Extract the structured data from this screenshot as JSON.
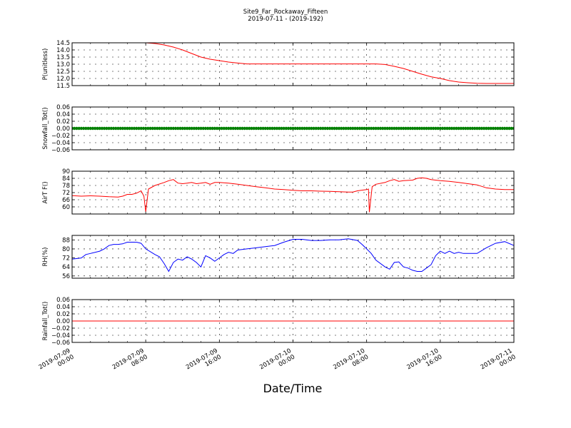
{
  "chart_data": {
    "type": "line",
    "title": "Site9_Far_Rockaway_Fifteen",
    "subtitle": "2019-07-11 - (2019-192)",
    "xlabel": "Date/Time",
    "x_range": [
      "2019-07-09 00:00",
      "2019-07-11 00:00"
    ],
    "x_ticks": [
      {
        "hours": 0,
        "label_date": "2019-07-09",
        "label_time": "00:00"
      },
      {
        "hours": 8,
        "label_date": "2019-07-09",
        "label_time": "08:00"
      },
      {
        "hours": 16,
        "label_date": "2019-07-09",
        "label_time": "16:00"
      },
      {
        "hours": 24,
        "label_date": "2019-07-10",
        "label_time": "00:00"
      },
      {
        "hours": 32,
        "label_date": "2019-07-10",
        "label_time": "08:00"
      },
      {
        "hours": 40,
        "label_date": "2019-07-10",
        "label_time": "16:00"
      },
      {
        "hours": 48,
        "label_date": "2019-07-11",
        "label_time": "00:00"
      }
    ],
    "panels": [
      {
        "ylabel": "P(unitless)",
        "ylim": [
          11.5,
          14.5
        ],
        "yticks": [
          "11.5",
          "12.0",
          "12.5",
          "13.0",
          "13.5",
          "14.0",
          "14.5"
        ],
        "color": "#ff0000",
        "style": "line",
        "series": [
          [
            0,
            14.5
          ],
          [
            8,
            14.5
          ],
          [
            9,
            14.45
          ],
          [
            10,
            14.35
          ],
          [
            11,
            14.2
          ],
          [
            12,
            14.0
          ],
          [
            13,
            13.75
          ],
          [
            14,
            13.5
          ],
          [
            15,
            13.35
          ],
          [
            16,
            13.25
          ],
          [
            17,
            13.15
          ],
          [
            18,
            13.08
          ],
          [
            19,
            13.02
          ],
          [
            20,
            13.02
          ],
          [
            22,
            13.02
          ],
          [
            24,
            13.02
          ],
          [
            28,
            13.02
          ],
          [
            32,
            13.02
          ],
          [
            33,
            13.02
          ],
          [
            34,
            12.98
          ],
          [
            35,
            12.85
          ],
          [
            36,
            12.7
          ],
          [
            37,
            12.5
          ],
          [
            38,
            12.3
          ],
          [
            39,
            12.12
          ],
          [
            40,
            12.0
          ],
          [
            41,
            11.85
          ],
          [
            42,
            11.75
          ],
          [
            43,
            11.7
          ],
          [
            44,
            11.66
          ],
          [
            45,
            11.65
          ],
          [
            48,
            11.65
          ]
        ]
      },
      {
        "ylabel": "Snowfall_Tot()",
        "ylim": [
          -0.06,
          0.06
        ],
        "yticks": [
          "−0.06",
          "−0.04",
          "−0.02",
          "0.00",
          "0.02",
          "0.04",
          "0.06"
        ],
        "color": "#008000",
        "style": "markers",
        "series": [
          [
            0,
            0
          ],
          [
            48,
            0
          ]
        ]
      },
      {
        "ylabel": "AirT F()",
        "ylim": [
          54,
          90
        ],
        "yticks": [
          "60",
          "66",
          "72",
          "78",
          "84",
          "90"
        ],
        "color": "#ff0000",
        "style": "line",
        "series": [
          [
            0,
            69.5
          ],
          [
            1,
            69
          ],
          [
            2,
            69.3
          ],
          [
            3,
            69
          ],
          [
            4,
            68.5
          ],
          [
            5,
            68.3
          ],
          [
            5.5,
            69
          ],
          [
            6,
            70.5
          ],
          [
            6.5,
            70.5
          ],
          [
            7,
            71.5
          ],
          [
            7.5,
            73.5
          ],
          [
            7.8,
            69
          ],
          [
            8,
            56
          ],
          [
            8.3,
            75
          ],
          [
            9,
            78
          ],
          [
            10,
            80.5
          ],
          [
            10.5,
            82
          ],
          [
            11,
            83
          ],
          [
            11.5,
            80
          ],
          [
            12,
            79.5
          ],
          [
            12.5,
            80
          ],
          [
            13,
            80.5
          ],
          [
            13.5,
            79.5
          ],
          [
            14,
            80
          ],
          [
            14.5,
            80.5
          ],
          [
            15,
            79
          ],
          [
            15.5,
            80.5
          ],
          [
            16,
            80.5
          ],
          [
            17,
            80
          ],
          [
            18,
            79
          ],
          [
            19,
            78
          ],
          [
            20,
            77
          ],
          [
            21,
            76
          ],
          [
            22,
            75
          ],
          [
            23,
            74.5
          ],
          [
            24,
            74
          ],
          [
            25,
            73.5
          ],
          [
            26,
            73.5
          ],
          [
            27,
            73.2
          ],
          [
            28,
            73
          ],
          [
            29,
            72.8
          ],
          [
            30,
            72.5
          ],
          [
            30.5,
            72.5
          ],
          [
            31,
            73.5
          ],
          [
            32,
            74.5
          ],
          [
            32.2,
            75
          ],
          [
            32.3,
            55.5
          ],
          [
            32.6,
            77
          ],
          [
            33,
            79
          ],
          [
            34,
            80.5
          ],
          [
            34.5,
            82
          ],
          [
            35,
            83
          ],
          [
            35.5,
            81.5
          ],
          [
            36,
            82
          ],
          [
            37,
            82.5
          ],
          [
            37.5,
            84
          ],
          [
            38,
            84.5
          ],
          [
            38.5,
            84
          ],
          [
            39,
            83
          ],
          [
            40,
            82
          ],
          [
            41,
            81.5
          ],
          [
            42,
            80.5
          ],
          [
            43,
            79.5
          ],
          [
            44,
            78.5
          ],
          [
            45,
            76
          ],
          [
            46,
            75
          ],
          [
            47,
            74.5
          ],
          [
            48,
            74.5
          ]
        ]
      },
      {
        "ylabel": "RH(%)",
        "ylim": [
          54,
          92
        ],
        "yticks": [
          "56",
          "64",
          "72",
          "80",
          "88"
        ],
        "color": "#0000ff",
        "style": "line",
        "series": [
          [
            0,
            71
          ],
          [
            1,
            72
          ],
          [
            1.5,
            75
          ],
          [
            2,
            76
          ],
          [
            3,
            78
          ],
          [
            3.5,
            80
          ],
          [
            4,
            83
          ],
          [
            4.5,
            84
          ],
          [
            5,
            84
          ],
          [
            5.5,
            84.5
          ],
          [
            6,
            86
          ],
          [
            7,
            86
          ],
          [
            7.5,
            85
          ],
          [
            8,
            80
          ],
          [
            9,
            75
          ],
          [
            9.5,
            73
          ],
          [
            10,
            67
          ],
          [
            10.5,
            60
          ],
          [
            11,
            68
          ],
          [
            11.5,
            71
          ],
          [
            12,
            70
          ],
          [
            12.5,
            73
          ],
          [
            13,
            71
          ],
          [
            13.5,
            68
          ],
          [
            14,
            64
          ],
          [
            14.5,
            74
          ],
          [
            15,
            72
          ],
          [
            15.5,
            69
          ],
          [
            16,
            72
          ],
          [
            16.5,
            75
          ],
          [
            17,
            77
          ],
          [
            17.5,
            76
          ],
          [
            18,
            79
          ],
          [
            19,
            80
          ],
          [
            20,
            81
          ],
          [
            21,
            82
          ],
          [
            22,
            83
          ],
          [
            23,
            86
          ],
          [
            24,
            88.5
          ],
          [
            25,
            88.5
          ],
          [
            26,
            87.5
          ],
          [
            27,
            87.5
          ],
          [
            28,
            88
          ],
          [
            29,
            88
          ],
          [
            30,
            89
          ],
          [
            31,
            87.5
          ],
          [
            31.5,
            84
          ],
          [
            32,
            80
          ],
          [
            32.5,
            76
          ],
          [
            33,
            70
          ],
          [
            34,
            64
          ],
          [
            34.5,
            62
          ],
          [
            35,
            68
          ],
          [
            35.5,
            68.5
          ],
          [
            36,
            64
          ],
          [
            36.5,
            63
          ],
          [
            37,
            61
          ],
          [
            37.5,
            60
          ],
          [
            38,
            60
          ],
          [
            38.5,
            63
          ],
          [
            39,
            66
          ],
          [
            39.5,
            74
          ],
          [
            40,
            78
          ],
          [
            40.5,
            76
          ],
          [
            41,
            78
          ],
          [
            41.5,
            76
          ],
          [
            42,
            77
          ],
          [
            42.5,
            76
          ],
          [
            43,
            76
          ],
          [
            44,
            76
          ],
          [
            45,
            81
          ],
          [
            46,
            85
          ],
          [
            47,
            86.5
          ],
          [
            48,
            83
          ]
        ]
      },
      {
        "ylabel": "Rainfall_Tot()",
        "ylim": [
          -0.06,
          0.06
        ],
        "yticks": [
          "−0.06",
          "−0.04",
          "−0.02",
          "0.00",
          "0.02",
          "0.04",
          "0.06"
        ],
        "color": "#ff0000",
        "style": "line",
        "series": [
          [
            0,
            0
          ],
          [
            48,
            0
          ]
        ]
      }
    ]
  }
}
